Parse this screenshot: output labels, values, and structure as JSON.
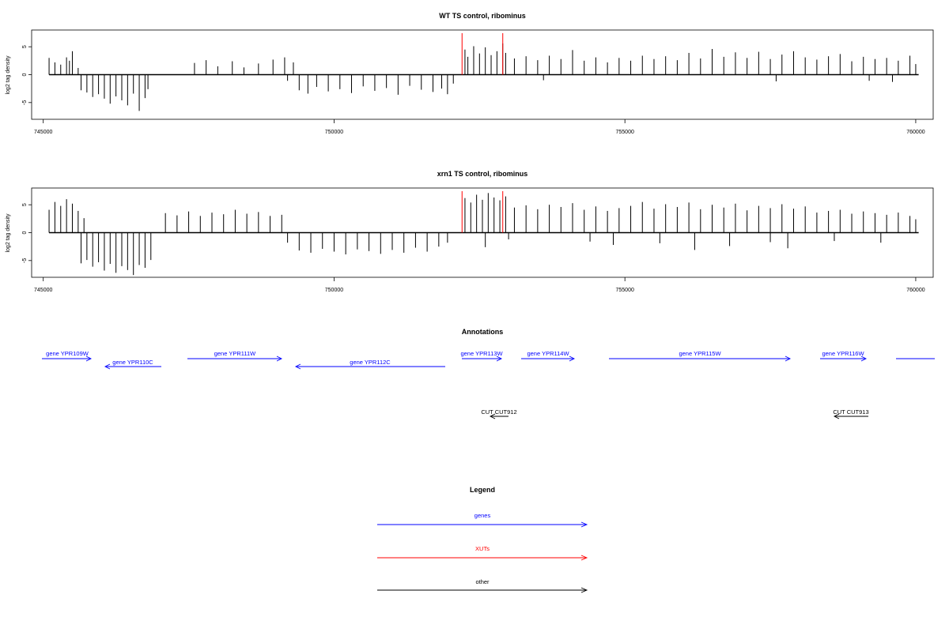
{
  "chart_data": [
    {
      "type": "bar",
      "title": "WT TS control, ribominus",
      "ylabel": "log2 tag density",
      "xlim": [
        744800,
        760300
      ],
      "ylim": [
        -8,
        8
      ],
      "xticks": [
        745000,
        750000,
        755000,
        760000
      ],
      "yticks": [
        -5,
        0,
        5
      ],
      "series": [
        {
          "values": [
            [
              745100,
              3.0
            ],
            [
              745200,
              2.2
            ],
            [
              745300,
              1.8
            ],
            [
              745400,
              3.1
            ],
            [
              745450,
              2.5
            ],
            [
              745500,
              4.2
            ],
            [
              745600,
              1.2
            ],
            [
              745650,
              -2.8
            ],
            [
              745750,
              -3.2
            ],
            [
              745850,
              -4.0
            ],
            [
              745950,
              -3.5
            ],
            [
              746050,
              -4.3
            ],
            [
              746150,
              -5.2
            ],
            [
              746250,
              -3.9
            ],
            [
              746350,
              -4.6
            ],
            [
              746450,
              -5.5
            ],
            [
              746550,
              -3.4
            ],
            [
              746650,
              -6.5
            ],
            [
              746750,
              -4.2
            ],
            [
              746800,
              -2.6
            ],
            [
              747600,
              2.1
            ],
            [
              747800,
              2.6
            ],
            [
              748000,
              1.5
            ],
            [
              748250,
              2.4
            ],
            [
              748450,
              1.3
            ],
            [
              748700,
              2.0
            ],
            [
              748950,
              2.7
            ],
            [
              749150,
              3.1
            ],
            [
              749300,
              2.2
            ],
            [
              749200,
              -1.1
            ],
            [
              749400,
              -2.8
            ],
            [
              749550,
              -3.4
            ],
            [
              749700,
              -2.2
            ],
            [
              749900,
              -3.0
            ],
            [
              750100,
              -2.6
            ],
            [
              750300,
              -3.3
            ],
            [
              750500,
              -2.1
            ],
            [
              750700,
              -2.9
            ],
            [
              750900,
              -2.4
            ],
            [
              751100,
              -3.6
            ],
            [
              751300,
              -2.0
            ],
            [
              751500,
              -2.7
            ],
            [
              751700,
              -3.1
            ],
            [
              751850,
              -2.5
            ],
            [
              751950,
              -3.5
            ],
            [
              752050,
              -1.6
            ],
            [
              752250,
              4.5
            ],
            [
              752300,
              3.2
            ],
            [
              752400,
              5.1
            ],
            [
              752500,
              3.8
            ],
            [
              752600,
              4.9
            ],
            [
              752700,
              3.5
            ],
            [
              752800,
              4.2
            ],
            [
              752900,
              5.6
            ],
            [
              752950,
              3.9
            ],
            [
              753100,
              2.9
            ],
            [
              753300,
              3.3
            ],
            [
              753500,
              2.6
            ],
            [
              753700,
              3.4
            ],
            [
              753900,
              2.8
            ],
            [
              754100,
              4.4
            ],
            [
              754300,
              2.5
            ],
            [
              754500,
              3.1
            ],
            [
              754700,
              2.2
            ],
            [
              754900,
              3.0
            ],
            [
              755100,
              2.5
            ],
            [
              755300,
              3.4
            ],
            [
              755500,
              2.8
            ],
            [
              755700,
              3.3
            ],
            [
              755900,
              2.6
            ],
            [
              756100,
              3.9
            ],
            [
              756300,
              2.9
            ],
            [
              756500,
              4.6
            ],
            [
              756700,
              3.2
            ],
            [
              756900,
              4.0
            ],
            [
              757100,
              3.0
            ],
            [
              757300,
              4.1
            ],
            [
              757500,
              2.8
            ],
            [
              757700,
              3.6
            ],
            [
              757900,
              4.2
            ],
            [
              758100,
              3.1
            ],
            [
              758300,
              2.7
            ],
            [
              758500,
              3.3
            ],
            [
              758700,
              3.7
            ],
            [
              758900,
              2.4
            ],
            [
              759100,
              3.2
            ],
            [
              759300,
              2.8
            ],
            [
              759500,
              3.0
            ],
            [
              759700,
              2.5
            ],
            [
              759900,
              3.4
            ],
            [
              760000,
              1.9
            ],
            [
              753600,
              -1.0
            ],
            [
              757600,
              -1.2
            ],
            [
              759200,
              -1.1
            ],
            [
              759600,
              -1.3
            ]
          ]
        }
      ]
    },
    {
      "type": "bar",
      "title": "xrn1 TS control, ribominus",
      "ylabel": "log2 tag density",
      "xlim": [
        744800,
        760300
      ],
      "ylim": [
        -8,
        8
      ],
      "xticks": [
        745000,
        750000,
        755000,
        760000
      ],
      "yticks": [
        -5,
        0,
        5
      ],
      "series": [
        {
          "values": [
            [
              745100,
              4.1
            ],
            [
              745200,
              5.5
            ],
            [
              745300,
              4.8
            ],
            [
              745400,
              6.0
            ],
            [
              745500,
              5.2
            ],
            [
              745600,
              3.9
            ],
            [
              745700,
              2.6
            ],
            [
              745650,
              -5.5
            ],
            [
              745750,
              -4.9
            ],
            [
              745850,
              -6.1
            ],
            [
              745950,
              -5.3
            ],
            [
              746050,
              -6.8
            ],
            [
              746150,
              -5.6
            ],
            [
              746250,
              -7.2
            ],
            [
              746350,
              -6.0
            ],
            [
              746450,
              -6.7
            ],
            [
              746550,
              -7.6
            ],
            [
              746650,
              -5.8
            ],
            [
              746750,
              -6.3
            ],
            [
              746850,
              -4.9
            ],
            [
              747100,
              3.5
            ],
            [
              747300,
              3.1
            ],
            [
              747500,
              3.8
            ],
            [
              747700,
              3.0
            ],
            [
              747900,
              3.6
            ],
            [
              748100,
              3.3
            ],
            [
              748300,
              4.1
            ],
            [
              748500,
              3.4
            ],
            [
              748700,
              3.7
            ],
            [
              748900,
              3.0
            ],
            [
              749100,
              3.2
            ],
            [
              749200,
              -1.8
            ],
            [
              749400,
              -3.2
            ],
            [
              749600,
              -3.6
            ],
            [
              749800,
              -2.9
            ],
            [
              750000,
              -3.4
            ],
            [
              750200,
              -3.9
            ],
            [
              750400,
              -3.0
            ],
            [
              750600,
              -3.3
            ],
            [
              750800,
              -3.8
            ],
            [
              751000,
              -3.1
            ],
            [
              751200,
              -3.6
            ],
            [
              751400,
              -2.7
            ],
            [
              751600,
              -3.4
            ],
            [
              751800,
              -2.5
            ],
            [
              751950,
              -1.8
            ],
            [
              752250,
              6.2
            ],
            [
              752350,
              5.4
            ],
            [
              752450,
              6.8
            ],
            [
              752550,
              5.9
            ],
            [
              752650,
              7.1
            ],
            [
              752750,
              6.3
            ],
            [
              752850,
              5.8
            ],
            [
              752950,
              6.5
            ],
            [
              753100,
              4.5
            ],
            [
              753300,
              4.9
            ],
            [
              753500,
              4.2
            ],
            [
              753700,
              5.0
            ],
            [
              753900,
              4.6
            ],
            [
              754100,
              5.3
            ],
            [
              754300,
              4.1
            ],
            [
              754500,
              4.7
            ],
            [
              754700,
              3.9
            ],
            [
              754900,
              4.4
            ],
            [
              755100,
              4.8
            ],
            [
              755300,
              5.5
            ],
            [
              755500,
              4.3
            ],
            [
              755700,
              5.1
            ],
            [
              755900,
              4.6
            ],
            [
              756100,
              5.4
            ],
            [
              756300,
              4.2
            ],
            [
              756500,
              5.0
            ],
            [
              756700,
              4.5
            ],
            [
              756900,
              5.2
            ],
            [
              757100,
              4.0
            ],
            [
              757300,
              4.8
            ],
            [
              757500,
              4.4
            ],
            [
              757700,
              5.1
            ],
            [
              757900,
              4.3
            ],
            [
              758100,
              4.7
            ],
            [
              758300,
              3.6
            ],
            [
              758500,
              3.9
            ],
            [
              758700,
              4.1
            ],
            [
              758900,
              3.4
            ],
            [
              759100,
              3.8
            ],
            [
              759300,
              3.5
            ],
            [
              759500,
              3.2
            ],
            [
              759700,
              3.6
            ],
            [
              759900,
              3.0
            ],
            [
              760000,
              2.4
            ],
            [
              752600,
              -2.6
            ],
            [
              753000,
              -1.2
            ],
            [
              754400,
              -1.6
            ],
            [
              754800,
              -2.2
            ],
            [
              755600,
              -1.9
            ],
            [
              756200,
              -3.1
            ],
            [
              756800,
              -2.4
            ],
            [
              757500,
              -1.7
            ],
            [
              757800,
              -2.8
            ],
            [
              758600,
              -1.5
            ],
            [
              759400,
              -1.8
            ]
          ]
        }
      ],
      "highlight_x": [
        752200,
        752900
      ]
    }
  ],
  "annotations": {
    "title": "Annotations",
    "genes_row1": [
      {
        "label": "gene YPR109W"
      },
      {
        "label": "gene YPR111W"
      },
      {
        "label": "gene YPR113W"
      },
      {
        "label": "gene YPR114W"
      },
      {
        "label": "gene YPR115W"
      },
      {
        "label": "gene YPR116W"
      }
    ],
    "genes_row2": [
      {
        "label": "gene YPR110C"
      },
      {
        "label": "gene YPR112C"
      }
    ],
    "other": [
      {
        "label": "CUT CUT912"
      },
      {
        "label": "CUT CUT913"
      }
    ]
  },
  "legend": {
    "title": "Legend",
    "items": [
      {
        "label": "genes",
        "color": "#0000ff"
      },
      {
        "label": "XUTs",
        "color": "#ff0000"
      },
      {
        "label": "other",
        "color": "#000000"
      }
    ]
  },
  "colors": {
    "gene": "#0000ff",
    "xut": "#ff0000",
    "other": "#000000",
    "bar": "#000000"
  }
}
